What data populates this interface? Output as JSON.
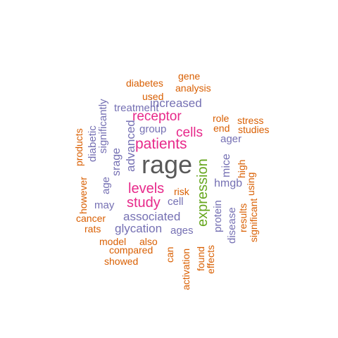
{
  "colors": {
    "orange": "#d95f02",
    "purple": "#7570b3",
    "magenta": "#e7298a",
    "green": "#66a61e",
    "gray": "#666666"
  },
  "words": {
    "rage": "rage",
    "patients": "patients",
    "levels": "levels",
    "study": "study",
    "receptor": "receptor",
    "cells": "cells",
    "associated": "associated",
    "glycation": "glycation",
    "increased": "increased",
    "treatment": "treatment",
    "group": "group",
    "hmgb": "hmgb",
    "ager": "ager",
    "ages": "ages",
    "cell": "cell",
    "may": "may",
    "diabetes": "diabetes",
    "analysis": "analysis",
    "used": "used",
    "gene": "gene",
    "role": "role",
    "stress": "stress",
    "end": "end",
    "studies": "studies",
    "risk": "risk",
    "cancer": "cancer",
    "rats": "rats",
    "model": "model",
    "also": "also",
    "compared": "compared",
    "showed": "showed",
    "expression": "expression",
    "advanced": "advanced",
    "srage": "srage",
    "significantly": "significantly",
    "diabetic": "diabetic",
    "age": "age",
    "products": "products",
    "however": "however",
    "mice": "mice",
    "protein": "protein",
    "disease": "disease",
    "high": "high",
    "results": "results",
    "using": "using",
    "significant": "significant",
    "activation": "activation",
    "found": "found",
    "effects": "effects",
    "can": "can"
  }
}
